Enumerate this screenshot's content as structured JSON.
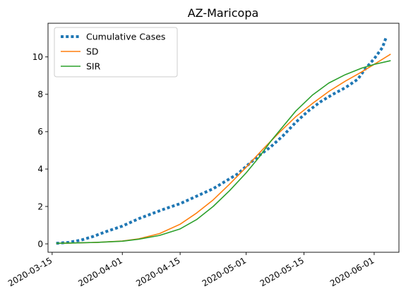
{
  "chart_data": {
    "type": "line",
    "title": "AZ-Maricopa",
    "xlabel": "",
    "ylabel": "",
    "x_axis_type": "date",
    "xlim": [
      "2020-03-14",
      "2020-06-07"
    ],
    "ylim": [
      -0.45,
      11.8
    ],
    "x_ticks": [
      "2020-03-15",
      "2020-04-01",
      "2020-04-15",
      "2020-05-01",
      "2020-05-15",
      "2020-06-01"
    ],
    "y_ticks": [
      0,
      2,
      4,
      6,
      8,
      10
    ],
    "grid": false,
    "legend_position": "upper-left",
    "series": [
      {
        "name": "Cumulative Cases",
        "color": "#1f77b4",
        "style": "dotted",
        "points": [
          [
            "2020-03-16",
            0.03
          ],
          [
            "2020-03-19",
            0.08
          ],
          [
            "2020-03-22",
            0.2
          ],
          [
            "2020-03-25",
            0.4
          ],
          [
            "2020-03-28",
            0.65
          ],
          [
            "2020-04-01",
            0.95
          ],
          [
            "2020-04-05",
            1.35
          ],
          [
            "2020-04-08",
            1.6
          ],
          [
            "2020-04-11",
            1.85
          ],
          [
            "2020-04-15",
            2.15
          ],
          [
            "2020-04-19",
            2.55
          ],
          [
            "2020-04-23",
            2.95
          ],
          [
            "2020-04-26",
            3.35
          ],
          [
            "2020-04-29",
            3.75
          ],
          [
            "2020-05-01",
            4.15
          ],
          [
            "2020-05-04",
            4.7
          ],
          [
            "2020-05-07",
            5.2
          ],
          [
            "2020-05-10",
            5.8
          ],
          [
            "2020-05-13",
            6.5
          ],
          [
            "2020-05-16",
            7.1
          ],
          [
            "2020-05-19",
            7.6
          ],
          [
            "2020-05-22",
            8.0
          ],
          [
            "2020-05-25",
            8.35
          ],
          [
            "2020-05-28",
            8.8
          ],
          [
            "2020-05-30",
            9.4
          ],
          [
            "2020-06-01",
            9.9
          ],
          [
            "2020-06-03",
            10.5
          ],
          [
            "2020-06-04",
            11.1
          ]
        ]
      },
      {
        "name": "SD",
        "color": "#ff7f0e",
        "style": "solid",
        "points": [
          [
            "2020-03-16",
            0.03
          ],
          [
            "2020-03-21",
            0.05
          ],
          [
            "2020-03-26",
            0.08
          ],
          [
            "2020-04-01",
            0.15
          ],
          [
            "2020-04-05",
            0.27
          ],
          [
            "2020-04-10",
            0.55
          ],
          [
            "2020-04-15",
            1.05
          ],
          [
            "2020-04-19",
            1.65
          ],
          [
            "2020-04-23",
            2.35
          ],
          [
            "2020-04-27",
            3.2
          ],
          [
            "2020-05-01",
            4.1
          ],
          [
            "2020-05-05",
            5.05
          ],
          [
            "2020-05-09",
            5.95
          ],
          [
            "2020-05-13",
            6.8
          ],
          [
            "2020-05-17",
            7.5
          ],
          [
            "2020-05-21",
            8.15
          ],
          [
            "2020-05-25",
            8.7
          ],
          [
            "2020-05-29",
            9.2
          ],
          [
            "2020-06-01",
            9.6
          ],
          [
            "2020-06-05",
            10.15
          ]
        ]
      },
      {
        "name": "SIR",
        "color": "#2ca02c",
        "style": "solid",
        "points": [
          [
            "2020-03-16",
            0.03
          ],
          [
            "2020-03-21",
            0.05
          ],
          [
            "2020-03-26",
            0.08
          ],
          [
            "2020-04-01",
            0.14
          ],
          [
            "2020-04-05",
            0.25
          ],
          [
            "2020-04-10",
            0.45
          ],
          [
            "2020-04-15",
            0.8
          ],
          [
            "2020-04-19",
            1.3
          ],
          [
            "2020-04-23",
            2.0
          ],
          [
            "2020-04-27",
            2.85
          ],
          [
            "2020-05-01",
            3.8
          ],
          [
            "2020-05-04",
            4.6
          ],
          [
            "2020-05-07",
            5.5
          ],
          [
            "2020-05-10",
            6.3
          ],
          [
            "2020-05-13",
            7.1
          ],
          [
            "2020-05-17",
            7.95
          ],
          [
            "2020-05-21",
            8.6
          ],
          [
            "2020-05-25",
            9.05
          ],
          [
            "2020-05-29",
            9.4
          ],
          [
            "2020-06-01",
            9.6
          ],
          [
            "2020-06-05",
            9.8
          ]
        ]
      }
    ]
  }
}
